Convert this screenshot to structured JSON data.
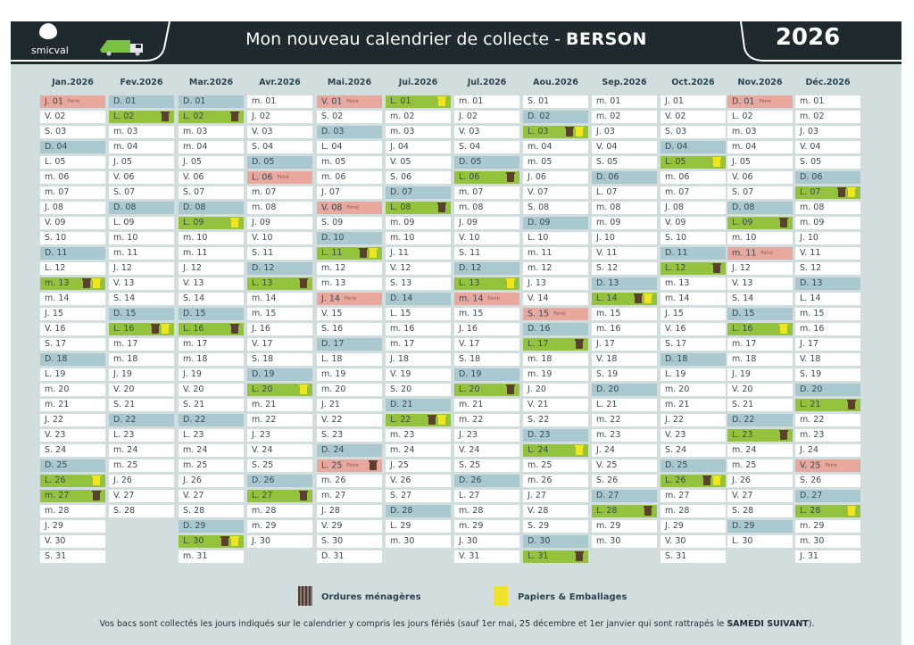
{
  "header": {
    "logo_text": "smicval",
    "title_prefix": "Mon nouveau calendrier de collecte - ",
    "title_city": "BERSON",
    "year": "2026"
  },
  "ferie_label": "Férié",
  "colors": {
    "sunday": "#a9c8cf",
    "ferie": "#e8a89e",
    "collecte": "#94c23d",
    "ordures": "#5b4030",
    "papiers": "#f3e51c"
  },
  "legend": {
    "ordures": "Ordures ménagères",
    "papiers": "Papiers & Emballages"
  },
  "footer": {
    "text": "Vos bacs sont collectés les jours indiqués sur le calendrier y compris les jours fériés (sauf 1er mai, 25 décembre et 1er janvier qui sont rattrapés le ",
    "bold": "SAMEDI SUIVANT",
    "end": ")."
  },
  "months": [
    {
      "title": "Jan.2026",
      "blue": [
        4,
        11,
        18,
        25
      ],
      "ferie": [
        1
      ],
      "om": [
        13,
        27
      ],
      "pe": [
        13,
        26
      ],
      "days": [
        "J. 01",
        "V. 02",
        "S. 03",
        "D. 04",
        "L. 05",
        "m. 06",
        "m. 07",
        "J. 08",
        "V. 09",
        "S. 10",
        "D. 11",
        "L. 12",
        "m. 13",
        "m. 14",
        "J. 15",
        "V. 16",
        "S. 17",
        "D. 18",
        "L. 19",
        "m. 20",
        "m. 21",
        "J. 22",
        "V. 23",
        "S. 24",
        "D. 25",
        "L. 26",
        "m. 27",
        "m. 28",
        "J. 29",
        "V. 30",
        "S. 31"
      ]
    },
    {
      "title": "Fev.2026",
      "blue": [
        1,
        8,
        15,
        22
      ],
      "ferie": [],
      "om": [
        2,
        16
      ],
      "pe": [
        16
      ],
      "days": [
        "D. 01",
        "L. 02",
        "m. 03",
        "m. 04",
        "J. 05",
        "V. 06",
        "S. 07",
        "D. 08",
        "L. 09",
        "m. 10",
        "m. 11",
        "J. 12",
        "V. 13",
        "S. 14",
        "D. 15",
        "L. 16",
        "m. 17",
        "m. 18",
        "J. 19",
        "V. 20",
        "S. 21",
        "D. 22",
        "L. 23",
        "m. 24",
        "m. 25",
        "J. 26",
        "V. 27",
        "S. 28"
      ]
    },
    {
      "title": "Mar.2026",
      "blue": [
        1,
        8,
        15,
        22,
        29
      ],
      "ferie": [],
      "om": [
        2,
        16,
        30
      ],
      "pe": [
        9,
        30
      ],
      "days": [
        "D. 01",
        "L. 02",
        "m. 03",
        "m. 04",
        "J. 05",
        "V. 06",
        "S. 07",
        "D. 08",
        "L. 09",
        "m. 10",
        "m. 11",
        "J. 12",
        "V. 13",
        "S. 14",
        "D. 15",
        "L. 16",
        "m. 17",
        "m. 18",
        "J. 19",
        "V. 20",
        "S. 21",
        "D. 22",
        "L. 23",
        "m. 24",
        "m. 25",
        "J. 26",
        "V. 27",
        "S. 28",
        "D. 29",
        "L. 30",
        "m. 31"
      ]
    },
    {
      "title": "Avr.2026",
      "blue": [
        5,
        12,
        19,
        26
      ],
      "ferie": [
        6
      ],
      "om": [
        13,
        27
      ],
      "pe": [
        20
      ],
      "days": [
        "m. 01",
        "J. 02",
        "V. 03",
        "S. 04",
        "D. 05",
        "L. 06",
        "m. 07",
        "m. 08",
        "J. 09",
        "V. 10",
        "S. 11",
        "D. 12",
        "L. 13",
        "m. 14",
        "m. 15",
        "J. 16",
        "V. 17",
        "S. 18",
        "D. 19",
        "L. 20",
        "m. 21",
        "m. 22",
        "J. 23",
        "V. 24",
        "S. 25",
        "D. 26",
        "L. 27",
        "m. 28",
        "m. 29",
        "J. 30"
      ]
    },
    {
      "title": "Mai.2026",
      "blue": [
        3,
        10,
        17,
        24
      ],
      "ferie": [
        1,
        8,
        14,
        25
      ],
      "om": [
        11,
        25
      ],
      "pe": [
        11
      ],
      "days": [
        "V. 01",
        "S. 02",
        "D. 03",
        "L. 04",
        "m. 05",
        "m. 06",
        "J. 07",
        "V. 08",
        "S. 09",
        "D. 10",
        "L. 11",
        "m. 12",
        "m. 13",
        "J. 14",
        "V. 15",
        "S. 16",
        "D. 17",
        "L. 18",
        "m. 19",
        "m. 20",
        "J. 21",
        "V. 22",
        "S. 23",
        "D. 24",
        "L. 25",
        "m. 26",
        "m. 27",
        "J. 28",
        "V. 29",
        "S. 30",
        "D. 31"
      ]
    },
    {
      "title": "Jui.2026",
      "blue": [
        7,
        14,
        21,
        28
      ],
      "ferie": [],
      "om": [
        8,
        22
      ],
      "pe": [
        1,
        22
      ],
      "days": [
        "L. 01",
        "m. 02",
        "m. 03",
        "J. 04",
        "V. 05",
        "S. 06",
        "D. 07",
        "L. 08",
        "m. 09",
        "m. 10",
        "J. 11",
        "V. 12",
        "S. 13",
        "D. 14",
        "L. 15",
        "m. 16",
        "m. 17",
        "J. 18",
        "V. 19",
        "S. 20",
        "D. 21",
        "L. 22",
        "m. 23",
        "m. 24",
        "J. 25",
        "V. 26",
        "S. 27",
        "D. 28",
        "L. 29",
        "m. 30"
      ]
    },
    {
      "title": "Jul.2026",
      "blue": [
        5,
        12,
        19,
        26
      ],
      "ferie": [
        14
      ],
      "om": [
        6,
        20
      ],
      "pe": [
        13
      ],
      "days": [
        "m. 01",
        "J. 02",
        "V. 03",
        "S. 04",
        "D. 05",
        "L. 06",
        "m. 07",
        "m. 08",
        "J. 09",
        "V. 10",
        "S. 11",
        "D. 12",
        "L. 13",
        "m. 14",
        "m. 15",
        "J. 16",
        "V. 17",
        "S. 18",
        "D. 19",
        "L. 20",
        "m. 21",
        "m. 22",
        "J. 23",
        "V. 24",
        "S. 25",
        "D. 26",
        "L. 27",
        "m. 28",
        "m. 29",
        "J. 30",
        "V. 31"
      ]
    },
    {
      "title": "Aou.2026",
      "blue": [
        2,
        9,
        16,
        23,
        30
      ],
      "ferie": [
        15
      ],
      "om": [
        3,
        17,
        31
      ],
      "pe": [
        3,
        24
      ],
      "days": [
        "S. 01",
        "D. 02",
        "L. 03",
        "m. 04",
        "m. 05",
        "J. 06",
        "V. 07",
        "S. 08",
        "D. 09",
        "L. 10",
        "m. 11",
        "m. 12",
        "J. 13",
        "V. 14",
        "S. 15",
        "D. 16",
        "L. 17",
        "m. 18",
        "m. 19",
        "J. 20",
        "V. 21",
        "S. 22",
        "D. 23",
        "L. 24",
        "m. 25",
        "m. 26",
        "J. 27",
        "V. 28",
        "S. 29",
        "D. 30",
        "L. 31"
      ]
    },
    {
      "title": "Sep.2026",
      "blue": [
        6,
        13,
        20,
        27
      ],
      "ferie": [],
      "om": [
        14,
        28
      ],
      "pe": [
        14
      ],
      "days": [
        "m. 01",
        "m. 02",
        "J. 03",
        "V. 04",
        "S. 05",
        "D. 06",
        "L. 07",
        "m. 08",
        "m. 09",
        "J. 10",
        "V. 11",
        "S. 12",
        "D. 13",
        "L. 14",
        "m. 15",
        "m. 16",
        "J. 17",
        "V. 18",
        "S. 19",
        "D. 20",
        "L. 21",
        "m. 22",
        "m. 23",
        "J. 24",
        "V. 25",
        "S. 26",
        "D. 27",
        "L. 28",
        "m. 29",
        "m. 30"
      ]
    },
    {
      "title": "Oct.2026",
      "blue": [
        4,
        11,
        18,
        25
      ],
      "ferie": [],
      "om": [
        12,
        26
      ],
      "pe": [
        5,
        26
      ],
      "days": [
        "J. 01",
        "V. 02",
        "S. 03",
        "D. 04",
        "L. 05",
        "m. 06",
        "m. 07",
        "J. 08",
        "V. 09",
        "S. 10",
        "D. 11",
        "L. 12",
        "m. 13",
        "m. 14",
        "J. 15",
        "V. 16",
        "S. 17",
        "D. 18",
        "L. 19",
        "m. 20",
        "m. 21",
        "J. 22",
        "V. 23",
        "S. 24",
        "D. 25",
        "L. 26",
        "m. 27",
        "m. 28",
        "J. 29",
        "V. 30",
        "S. 31"
      ]
    },
    {
      "title": "Nov.2026",
      "blue": [
        8,
        15,
        22,
        29
      ],
      "ferie": [
        1,
        11
      ],
      "om": [
        9,
        23
      ],
      "pe": [
        16
      ],
      "days": [
        "D. 01",
        "L. 02",
        "m. 03",
        "m. 04",
        "J. 05",
        "V. 06",
        "S. 07",
        "D. 08",
        "L. 09",
        "m. 10",
        "m. 11",
        "J. 12",
        "V. 13",
        "S. 14",
        "D. 15",
        "L. 16",
        "m. 17",
        "m. 18",
        "J. 19",
        "V. 20",
        "S. 21",
        "D. 22",
        "L. 23",
        "m. 24",
        "m. 25",
        "J. 26",
        "V. 27",
        "S. 28",
        "D. 29",
        "L. 30"
      ]
    },
    {
      "title": "Déc.2026",
      "blue": [
        6,
        13,
        20,
        27
      ],
      "ferie": [
        25
      ],
      "om": [
        7,
        21
      ],
      "pe": [
        7,
        28
      ],
      "days": [
        "m. 01",
        "m. 02",
        "J. 03",
        "V. 04",
        "S. 05",
        "D. 06",
        "L. 07",
        "m. 08",
        "m. 09",
        "J. 10",
        "V. 11",
        "S. 12",
        "D. 13",
        "L. 14",
        "m. 15",
        "m. 16",
        "J. 17",
        "V. 18",
        "S. 19",
        "D. 20",
        "L. 21",
        "m. 22",
        "m. 23",
        "J. 24",
        "V. 25",
        "S. 26",
        "D. 27",
        "L. 28",
        "m. 29",
        "m. 30",
        "J. 31"
      ]
    }
  ]
}
